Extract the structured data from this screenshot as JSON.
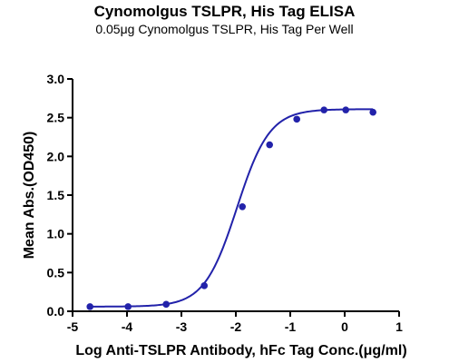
{
  "chart_data": {
    "type": "scatter",
    "title": "Cynomolgus TSLPR, His Tag ELISA",
    "subtitle": "0.05μg Cynomolgus TSLPR, His Tag Per Well",
    "xlabel": "Log Anti-TSLPR Antibody, hFc Tag Conc.(μg/ml)",
    "ylabel": "Mean Abs.(OD450)",
    "xlim": [
      -5,
      1
    ],
    "ylim": [
      0,
      3
    ],
    "x_ticks": [
      "-5",
      "-4",
      "-3",
      "-2",
      "-1",
      "0",
      "1"
    ],
    "y_ticks": [
      "0.0",
      "0.5",
      "1.0",
      "1.5",
      "2.0",
      "2.5",
      "3.0"
    ],
    "grid": false,
    "color": "#2222aa",
    "series": [
      {
        "x": [
          -4.68,
          -3.98,
          -3.28,
          -2.58,
          -1.88,
          -1.38,
          -0.88,
          -0.38,
          0.02,
          0.52
        ],
        "y": [
          0.06,
          0.06,
          0.09,
          0.33,
          1.35,
          2.15,
          2.48,
          2.6,
          2.6,
          2.57
        ]
      }
    ],
    "fit": {
      "bottom": 0.06,
      "top": 2.61,
      "logEC50": -1.98,
      "hill": 1.45
    }
  }
}
